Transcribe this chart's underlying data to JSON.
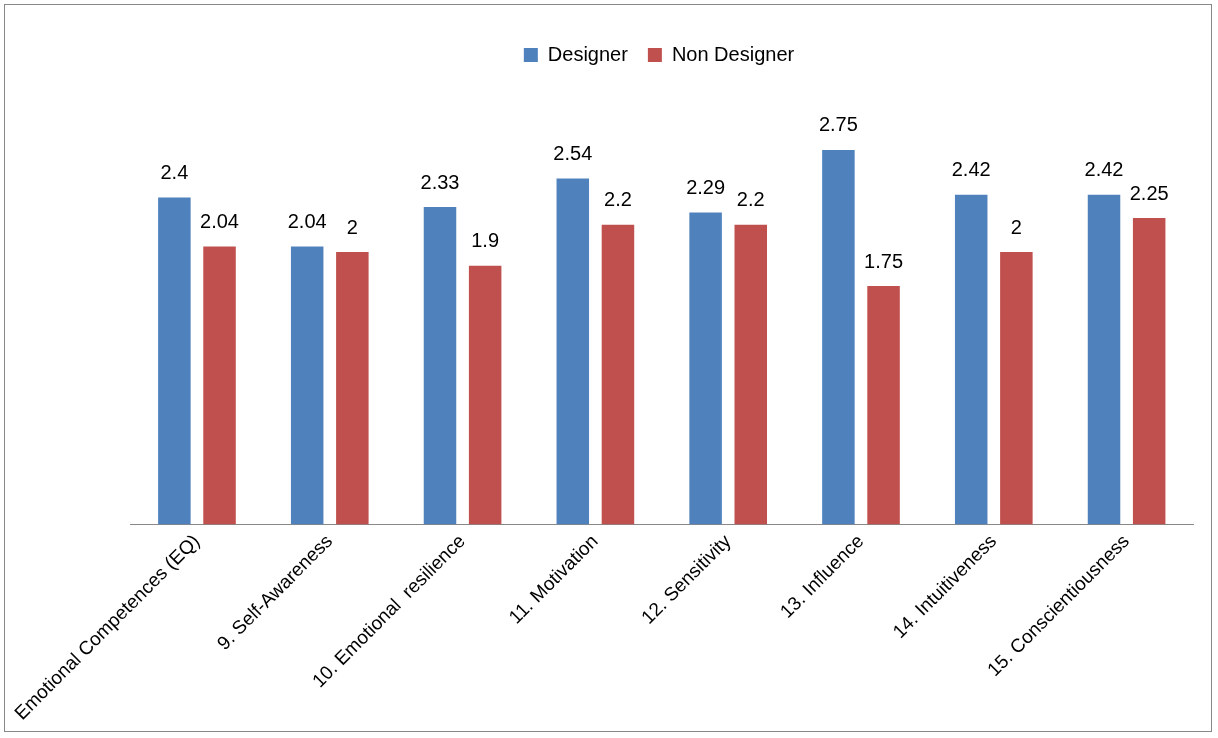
{
  "chart_data": {
    "type": "bar",
    "categories": [
      "Emotional Competences (EQ)",
      "9. Self-Awareness",
      "10. Emotional  resilience",
      "11. Motivation",
      "12. Sensitivity",
      "13. Influence",
      "14. Intuitiveness",
      "15. Conscientiousness"
    ],
    "series": [
      {
        "name": "Designer",
        "color": "#4f81bd",
        "values": [
          2.4,
          2.04,
          2.33,
          2.54,
          2.29,
          2.75,
          2.42,
          2.42
        ]
      },
      {
        "name": "Non Designer",
        "color": "#c0504d",
        "values": [
          2.04,
          2,
          1.9,
          2.2,
          2.2,
          1.75,
          2,
          2.25
        ]
      }
    ],
    "data_labels": true,
    "legend": "top",
    "grid": false,
    "tick_labels": "x"
  }
}
